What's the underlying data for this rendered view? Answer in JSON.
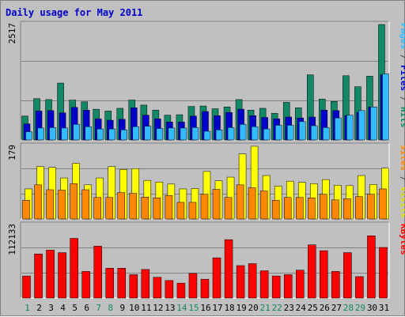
{
  "chart_data": [
    {
      "type": "bar",
      "title": "Daily usage for May 2011",
      "y_max_label": "2517",
      "legend": [
        {
          "text": "Pages",
          "color": "#33bbff"
        },
        {
          "text": " / ",
          "color": "#444444"
        },
        {
          "text": "Files",
          "color": "#0000cc"
        },
        {
          "text": " / ",
          "color": "#444444"
        },
        {
          "text": "Hits",
          "color": "#118866"
        }
      ],
      "ylim": [
        0,
        2517
      ],
      "categories": [
        "1",
        "2",
        "3",
        "4",
        "5",
        "6",
        "7",
        "8",
        "9",
        "10",
        "11",
        "12",
        "13",
        "14",
        "15",
        "16",
        "17",
        "18",
        "19",
        "20",
        "21",
        "22",
        "23",
        "24",
        "25",
        "26",
        "27",
        "28",
        "29",
        "30",
        "31"
      ],
      "weekend_days": [
        "1",
        "7",
        "8",
        "14",
        "15",
        "21",
        "22",
        "28",
        "29"
      ],
      "series": [
        {
          "name": "Hits",
          "color": "#118866",
          "values": [
            520,
            900,
            880,
            1240,
            870,
            830,
            670,
            630,
            690,
            870,
            760,
            650,
            540,
            550,
            730,
            740,
            680,
            720,
            880,
            650,
            690,
            580,
            820,
            700,
            1420,
            890,
            840,
            1400,
            1160,
            1390,
            2517
          ]
        },
        {
          "name": "Files",
          "color": "#0000cc",
          "values": [
            350,
            630,
            640,
            590,
            710,
            650,
            460,
            430,
            450,
            700,
            540,
            460,
            390,
            390,
            520,
            620,
            530,
            600,
            670,
            530,
            490,
            460,
            500,
            480,
            500,
            650,
            640,
            530,
            600,
            720,
            1420
          ]
        },
        {
          "name": "Pages",
          "color": "#33bbff",
          "values": [
            180,
            260,
            270,
            260,
            340,
            290,
            240,
            240,
            220,
            290,
            300,
            250,
            260,
            260,
            270,
            190,
            220,
            270,
            340,
            290,
            240,
            320,
            320,
            400,
            310,
            270,
            480,
            540,
            640,
            720,
            1440
          ]
        }
      ]
    },
    {
      "type": "bar",
      "y_max_label": "179",
      "legend": [
        {
          "text": "Sites",
          "color": "#ff8800"
        },
        {
          "text": " / ",
          "color": "#444444"
        },
        {
          "text": "Visits",
          "color": "#dddd00"
        }
      ],
      "ylim": [
        0,
        179
      ],
      "series": [
        {
          "name": "Visits",
          "color": "#ffff00",
          "values": [
            74,
            129,
            127,
            101,
            137,
            84,
            101,
            129,
            122,
            124,
            95,
            91,
            86,
            74,
            75,
            117,
            94,
            103,
            160,
            179,
            107,
            81,
            93,
            90,
            87,
            97,
            83,
            82,
            107,
            85,
            125
          ]
        },
        {
          "name": "Sites",
          "color": "#ff8800",
          "values": [
            46,
            84,
            72,
            71,
            87,
            72,
            53,
            53,
            65,
            63,
            54,
            52,
            58,
            41,
            41,
            61,
            73,
            53,
            84,
            77,
            69,
            46,
            53,
            53,
            52,
            61,
            47,
            50,
            55,
            61,
            74
          ]
        }
      ]
    },
    {
      "type": "bar",
      "y_max_label": "112133",
      "legend": [
        {
          "text": "KBytes",
          "color": "#ff0000"
        }
      ],
      "ylim": [
        0,
        112133
      ],
      "series": [
        {
          "name": "KBytes",
          "color": "#ff0000",
          "values": [
            34000,
            68000,
            74000,
            70000,
            92000,
            41000,
            80000,
            46000,
            46000,
            36000,
            44000,
            32000,
            27000,
            23000,
            38000,
            29000,
            62000,
            90000,
            50000,
            53000,
            42000,
            34000,
            36000,
            43000,
            82000,
            73000,
            41000,
            70000,
            33000,
            96000,
            78000
          ]
        }
      ]
    }
  ]
}
